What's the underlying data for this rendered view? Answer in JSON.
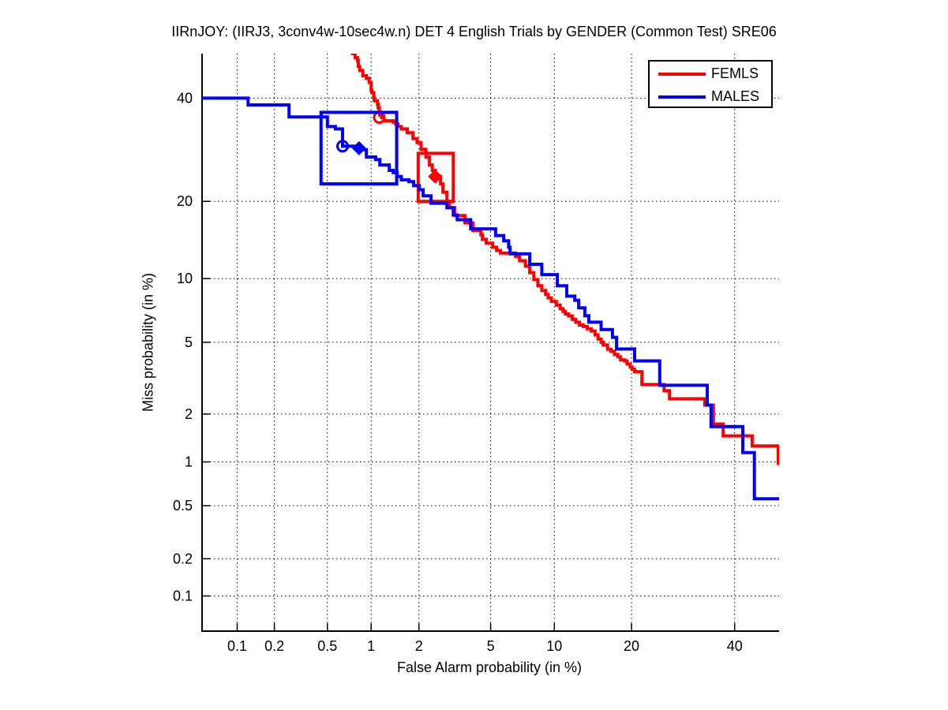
{
  "title": "IIRnJOY: (IIRJ3, 3conv4w-10sec4w.n) DET 4 English Trials by GENDER (Common Test) SRE06",
  "chart_data": {
    "type": "line",
    "subtype": "DET-curve (step plot, probit-probit axes)",
    "title": "IIRnJOY: (IIRJ3, 3conv4w-10sec4w.n) DET 4 English Trials by GENDER (Common Test) SRE06",
    "xlabel": "False Alarm probability (in %)",
    "ylabel": "Miss probability (in %)",
    "xlim": [
      0.05,
      50
    ],
    "ylim": [
      0.05,
      50
    ],
    "x_ticks": [
      0.1,
      0.2,
      0.5,
      1,
      2,
      5,
      10,
      20,
      40
    ],
    "y_ticks": [
      0.1,
      0.2,
      0.5,
      1,
      2,
      5,
      10,
      20,
      40
    ],
    "grid": true,
    "legend": {
      "position": "top-right",
      "entries": [
        {
          "label": "FEMLS",
          "color": "#ff0000"
        },
        {
          "label": "MALES",
          "color": "#0000ff"
        }
      ]
    },
    "series": [
      {
        "name": "FEMLS",
        "color": "#ff0000",
        "line_width": 4,
        "points": [
          [
            0.73,
            50
          ],
          [
            0.78,
            49.1
          ],
          [
            0.81,
            48.4
          ],
          [
            0.82,
            47.1
          ],
          [
            0.84,
            46.2
          ],
          [
            0.88,
            45.0
          ],
          [
            0.93,
            44.4
          ],
          [
            0.97,
            43.5
          ],
          [
            1.0,
            42.6
          ],
          [
            1.0,
            41.7
          ],
          [
            1.01,
            41.2
          ],
          [
            1.04,
            40.0
          ],
          [
            1.05,
            39.4
          ],
          [
            1.1,
            38.7
          ],
          [
            1.11,
            37.9
          ],
          [
            1.13,
            37.0
          ],
          [
            1.14,
            36.3
          ],
          [
            1.17,
            35.8
          ],
          [
            1.21,
            35.1
          ],
          [
            1.36,
            35.1
          ],
          [
            1.39,
            34.8
          ],
          [
            1.44,
            34.4
          ],
          [
            1.49,
            33.9
          ],
          [
            1.56,
            33.4
          ],
          [
            1.7,
            32.6
          ],
          [
            1.84,
            31.4
          ],
          [
            1.95,
            30.6
          ],
          [
            2.06,
            29.3
          ],
          [
            2.2,
            27.8
          ],
          [
            2.31,
            26.3
          ],
          [
            2.4,
            25.3
          ],
          [
            2.49,
            24.2
          ],
          [
            2.68,
            22.9
          ],
          [
            2.76,
            21.5
          ],
          [
            2.91,
            20.0
          ],
          [
            3.0,
            19.0
          ],
          [
            3.22,
            17.8
          ],
          [
            3.45,
            17.8
          ],
          [
            3.66,
            16.75
          ],
          [
            4.04,
            15.65
          ],
          [
            4.45,
            15.1
          ],
          [
            4.53,
            14.5
          ],
          [
            4.75,
            14.0
          ],
          [
            5.12,
            13.5
          ],
          [
            5.36,
            13.1
          ],
          [
            5.61,
            12.8
          ],
          [
            6.41,
            12.8
          ],
          [
            6.64,
            12.4
          ],
          [
            6.94,
            11.9
          ],
          [
            7.4,
            11.3
          ],
          [
            7.75,
            10.6
          ],
          [
            8.1,
            9.9
          ],
          [
            8.45,
            9.3
          ],
          [
            8.8,
            8.85
          ],
          [
            9.15,
            8.5
          ],
          [
            9.4,
            8.2
          ],
          [
            9.7,
            7.9
          ],
          [
            10.2,
            7.6
          ],
          [
            10.6,
            7.3
          ],
          [
            10.9,
            7.1
          ],
          [
            11.15,
            6.9
          ],
          [
            11.5,
            6.75
          ],
          [
            11.9,
            6.5
          ],
          [
            12.3,
            6.3
          ],
          [
            12.75,
            6.1
          ],
          [
            13.2,
            6.0
          ],
          [
            13.7,
            5.85
          ],
          [
            14.2,
            5.7
          ],
          [
            14.7,
            5.45
          ],
          [
            15.1,
            5.2
          ],
          [
            15.5,
            5.0
          ],
          [
            15.8,
            4.85
          ],
          [
            16.4,
            4.6
          ],
          [
            16.9,
            4.5
          ],
          [
            17.4,
            4.32
          ],
          [
            17.9,
            4.2
          ],
          [
            18.3,
            4.05
          ],
          [
            18.9,
            4.0
          ],
          [
            19.3,
            3.85
          ],
          [
            19.8,
            3.7
          ],
          [
            20.1,
            3.6
          ],
          [
            20.5,
            3.5
          ],
          [
            21.7,
            3.5
          ],
          [
            21.7,
            2.97
          ],
          [
            25.6,
            2.97
          ],
          [
            25.6,
            2.74
          ],
          [
            26.6,
            2.74
          ],
          [
            26.6,
            2.46
          ],
          [
            33.6,
            2.46
          ],
          [
            33.6,
            2.26
          ],
          [
            35.4,
            2.26
          ],
          [
            35.4,
            1.74
          ],
          [
            37.5,
            1.74
          ],
          [
            37.5,
            1.47
          ],
          [
            43.9,
            1.47
          ],
          [
            43.9,
            1.27
          ],
          [
            49.8,
            1.27
          ],
          [
            49.8,
            0.98
          ],
          [
            50,
            0.98
          ]
        ],
        "marker_circle": [
          1.13,
          35.8
        ],
        "marker_diamond": [
          2.49,
          24.2
        ],
        "box": {
          "fa": [
            1.98,
            3.16
          ],
          "miss": [
            20.0,
            28.5
          ]
        }
      },
      {
        "name": "MALES",
        "color": "#0000ff",
        "line_width": 4,
        "points": [
          [
            0.05,
            40
          ],
          [
            0.123,
            40
          ],
          [
            0.123,
            38.5
          ],
          [
            0.26,
            38.5
          ],
          [
            0.26,
            35.9
          ],
          [
            0.45,
            35.9
          ],
          [
            0.5,
            34.8
          ],
          [
            0.5,
            33.9
          ],
          [
            0.57,
            33.9
          ],
          [
            0.57,
            33.4
          ],
          [
            0.64,
            33.4
          ],
          [
            0.64,
            29.9
          ],
          [
            0.83,
            29.5
          ],
          [
            0.88,
            29.2
          ],
          [
            0.93,
            28.4
          ],
          [
            0.93,
            27.8
          ],
          [
            1.07,
            27.3
          ],
          [
            1.14,
            26.3
          ],
          [
            1.31,
            25.3
          ],
          [
            1.39,
            24.9
          ],
          [
            1.47,
            24.2
          ],
          [
            1.56,
            23.6
          ],
          [
            1.74,
            23.3
          ],
          [
            1.86,
            22.6
          ],
          [
            2.01,
            21.9
          ],
          [
            2.12,
            20.9
          ],
          [
            2.36,
            20.9
          ],
          [
            2.36,
            19.7
          ],
          [
            2.91,
            19.7
          ],
          [
            2.91,
            19.0
          ],
          [
            3.16,
            19.0
          ],
          [
            3.16,
            17.9
          ],
          [
            3.32,
            17.9
          ],
          [
            3.32,
            17.2
          ],
          [
            3.74,
            17.2
          ],
          [
            3.93,
            15.9
          ],
          [
            5.12,
            15.9
          ],
          [
            5.3,
            15.0
          ],
          [
            5.82,
            14.3
          ],
          [
            6.15,
            13.5
          ],
          [
            6.25,
            12.7
          ],
          [
            7.75,
            12.7
          ],
          [
            7.75,
            11.5
          ],
          [
            8.8,
            11.5
          ],
          [
            8.8,
            10.4
          ],
          [
            10.3,
            10.4
          ],
          [
            10.3,
            9.3
          ],
          [
            11.3,
            9.3
          ],
          [
            11.3,
            8.35
          ],
          [
            12.2,
            8.35
          ],
          [
            12.2,
            8.0
          ],
          [
            12.65,
            8.0
          ],
          [
            12.65,
            7.37
          ],
          [
            13.4,
            7.37
          ],
          [
            13.4,
            6.76
          ],
          [
            13.9,
            6.76
          ],
          [
            13.9,
            6.3
          ],
          [
            15.5,
            6.3
          ],
          [
            15.5,
            5.8
          ],
          [
            17.1,
            5.8
          ],
          [
            17.1,
            5.3
          ],
          [
            17.7,
            5.3
          ],
          [
            17.7,
            4.62
          ],
          [
            20.5,
            4.62
          ],
          [
            20.5,
            4.0
          ],
          [
            24.8,
            4.0
          ],
          [
            24.8,
            2.94
          ],
          [
            34.1,
            2.94
          ],
          [
            34.1,
            2.26
          ],
          [
            34.9,
            2.26
          ],
          [
            34.9,
            1.68
          ],
          [
            41.8,
            1.68
          ],
          [
            41.8,
            1.15
          ],
          [
            44.4,
            1.15
          ],
          [
            44.4,
            0.56
          ],
          [
            50,
            0.56
          ]
        ],
        "marker_circle": [
          0.64,
          29.9
        ],
        "marker_diamond": [
          0.83,
          29.5
        ],
        "box": {
          "fa": [
            0.45,
            1.46
          ],
          "miss": [
            22.9,
            36.9
          ]
        }
      }
    ]
  }
}
